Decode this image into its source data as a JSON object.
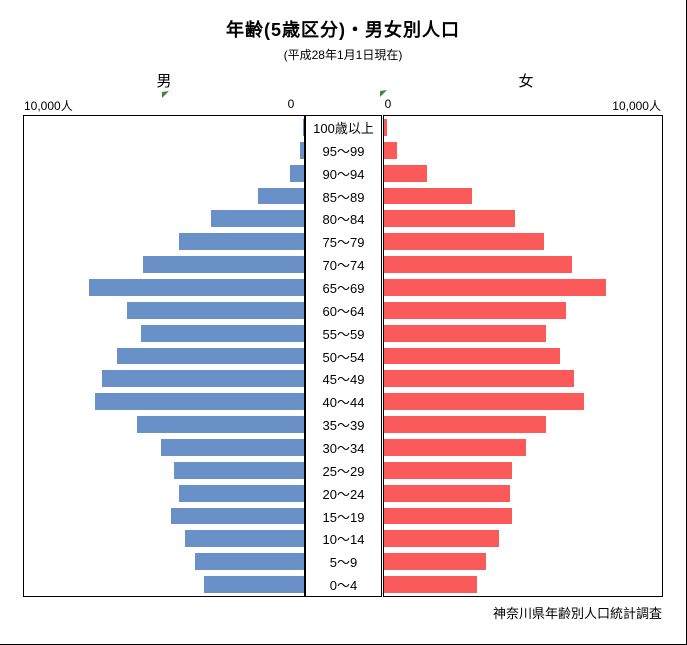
{
  "title": "年齢(5歳区分)・男女別人口",
  "subtitle": "(平成28年1月1日現在)",
  "source": "神奈川県年齢別人口統計調査",
  "axes": {
    "male_header": "男",
    "female_header": "女",
    "left_max_label": "10,000人",
    "left_zero_label": "0",
    "right_zero_label": "0",
    "right_max_label": "10,000人"
  },
  "colors": {
    "male_bar": "#6991C8",
    "female_bar": "#FA5A5A",
    "marker_green": "#3A8A3A"
  },
  "chart_data": {
    "type": "bar",
    "variant": "population-pyramid",
    "title": "年齢(5歳区分)・男女別人口",
    "subtitle": "(平成28年1月1日現在)",
    "unit": "人",
    "axis_max": 10000,
    "axis_tick_labels": [
      "10,000人",
      "0",
      "0",
      "10,000人"
    ],
    "grid": false,
    "legend": "none",
    "categories_top_to_bottom": [
      "100歳以上",
      "95〜99",
      "90〜94",
      "85〜89",
      "80〜84",
      "75〜79",
      "70〜74",
      "65〜69",
      "60〜64",
      "55〜59",
      "50〜54",
      "45〜49",
      "40〜44",
      "35〜39",
      "30〜34",
      "25〜29",
      "20〜24",
      "15〜19",
      "10〜14",
      "5〜9",
      "0〜4"
    ],
    "series": [
      {
        "name": "男",
        "side": "left",
        "values": [
          30,
          150,
          500,
          1630,
          3310,
          4480,
          5760,
          7680,
          6330,
          5810,
          6680,
          7210,
          7450,
          5970,
          5120,
          4660,
          4480,
          4760,
          4240,
          3880,
          3580
        ]
      },
      {
        "name": "女",
        "side": "right",
        "values": [
          110,
          460,
          1530,
          3150,
          4710,
          5770,
          6770,
          8000,
          6530,
          5820,
          6330,
          6850,
          7210,
          5820,
          5100,
          4590,
          4550,
          4600,
          4140,
          3670,
          3340
        ]
      }
    ],
    "source_note": "神奈川県年齢別人口統計調査"
  }
}
